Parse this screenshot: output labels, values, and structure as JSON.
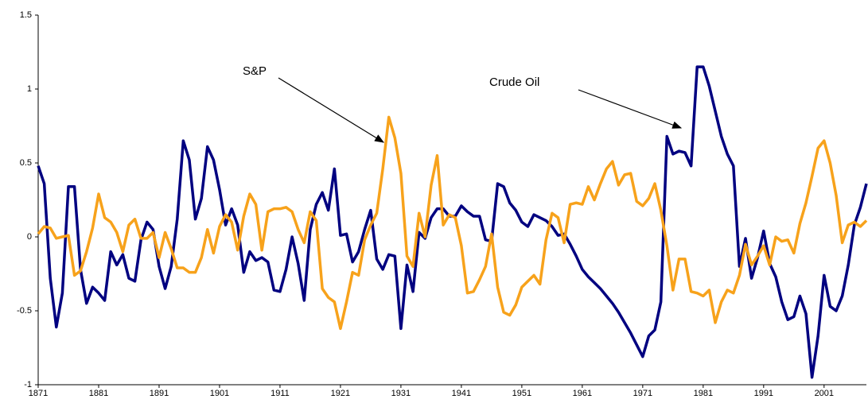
{
  "chart_data": {
    "type": "line",
    "xlim": [
      1871,
      2008
    ],
    "xticks": [
      1871,
      1881,
      1891,
      1901,
      1911,
      1921,
      1931,
      1941,
      1951,
      1961,
      1971,
      1981,
      1991,
      2001
    ],
    "ylim": [
      -1,
      1.5
    ],
    "yticks": [
      -1,
      -0.5,
      0,
      0.5,
      1,
      1.5
    ],
    "x": [
      1871,
      1872,
      1873,
      1874,
      1875,
      1876,
      1877,
      1878,
      1879,
      1880,
      1881,
      1882,
      1883,
      1884,
      1885,
      1886,
      1887,
      1888,
      1889,
      1890,
      1891,
      1892,
      1893,
      1894,
      1895,
      1896,
      1897,
      1898,
      1899,
      1900,
      1901,
      1902,
      1903,
      1904,
      1905,
      1906,
      1907,
      1908,
      1909,
      1910,
      1911,
      1912,
      1913,
      1914,
      1915,
      1916,
      1917,
      1918,
      1919,
      1920,
      1921,
      1922,
      1923,
      1924,
      1925,
      1926,
      1927,
      1928,
      1929,
      1930,
      1931,
      1932,
      1933,
      1934,
      1935,
      1936,
      1937,
      1938,
      1939,
      1940,
      1941,
      1942,
      1943,
      1944,
      1945,
      1946,
      1947,
      1948,
      1949,
      1950,
      1951,
      1952,
      1953,
      1954,
      1955,
      1956,
      1957,
      1958,
      1959,
      1960,
      1961,
      1962,
      1963,
      1964,
      1965,
      1966,
      1967,
      1968,
      1969,
      1970,
      1971,
      1972,
      1973,
      1974,
      1975,
      1976,
      1977,
      1978,
      1979,
      1980,
      1981,
      1982,
      1983,
      1984,
      1985,
      1986,
      1987,
      1988,
      1989,
      1990,
      1991,
      1992,
      1993,
      1994,
      1995,
      1996,
      1997,
      1998,
      1999,
      2000,
      2001,
      2002,
      2003,
      2004,
      2005,
      2006,
      2007,
      2008
    ],
    "series": [
      {
        "name": "Crude Oil",
        "color": "#000080",
        "values": [
          0.48,
          0.36,
          -0.28,
          -0.61,
          -0.38,
          0.34,
          0.34,
          -0.22,
          -0.45,
          -0.34,
          -0.38,
          -0.43,
          -0.1,
          -0.19,
          -0.12,
          -0.28,
          -0.3,
          -0.02,
          0.1,
          0.05,
          -0.2,
          -0.35,
          -0.2,
          0.12,
          0.65,
          0.52,
          0.12,
          0.26,
          0.61,
          0.52,
          0.32,
          0.08,
          0.19,
          0.08,
          -0.24,
          -0.1,
          -0.16,
          -0.14,
          -0.17,
          -0.36,
          -0.37,
          -0.22,
          0.0,
          -0.18,
          -0.43,
          0.05,
          0.22,
          0.3,
          0.18,
          0.46,
          0.01,
          0.02,
          -0.17,
          -0.1,
          0.05,
          0.18,
          -0.15,
          -0.22,
          -0.12,
          -0.13,
          -0.62,
          -0.19,
          -0.37,
          0.03,
          -0.01,
          0.13,
          0.19,
          0.19,
          0.14,
          0.14,
          0.21,
          0.17,
          0.14,
          0.14,
          -0.02,
          -0.03,
          0.36,
          0.34,
          0.23,
          0.18,
          0.1,
          0.07,
          0.15,
          0.13,
          0.11,
          0.07,
          0.01,
          0.02,
          -0.05,
          -0.13,
          -0.22,
          -0.27,
          -0.31,
          -0.35,
          -0.4,
          -0.45,
          -0.51,
          -0.58,
          -0.65,
          -0.73,
          -0.81,
          -0.67,
          -0.63,
          -0.44,
          0.68,
          0.56,
          0.58,
          0.57,
          0.48,
          1.15,
          1.15,
          1.02,
          0.85,
          0.68,
          0.56,
          0.48,
          -0.2,
          -0.01,
          -0.28,
          -0.14,
          0.04,
          -0.18,
          -0.27,
          -0.44,
          -0.56,
          -0.54,
          -0.4,
          -0.52,
          -0.95,
          -0.67,
          -0.26,
          -0.47,
          -0.5,
          -0.4,
          -0.19,
          0.08,
          0.2,
          0.36
        ]
      },
      {
        "name": "S&P",
        "color": "#f7a21b",
        "values": [
          0.02,
          0.07,
          0.06,
          -0.01,
          0.0,
          0.01,
          -0.26,
          -0.23,
          -0.1,
          0.06,
          0.29,
          0.13,
          0.1,
          0.03,
          -0.1,
          0.08,
          0.12,
          -0.01,
          -0.01,
          0.03,
          -0.14,
          0.03,
          -0.08,
          -0.21,
          -0.21,
          -0.24,
          -0.24,
          -0.14,
          0.05,
          -0.11,
          0.07,
          0.15,
          0.1,
          -0.09,
          0.14,
          0.29,
          0.22,
          -0.09,
          0.17,
          0.19,
          0.19,
          0.2,
          0.17,
          0.05,
          -0.04,
          0.17,
          0.11,
          -0.35,
          -0.41,
          -0.44,
          -0.62,
          -0.44,
          -0.24,
          -0.26,
          -0.02,
          0.08,
          0.16,
          0.46,
          0.81,
          0.67,
          0.43,
          -0.13,
          -0.2,
          0.16,
          0.0,
          0.35,
          0.55,
          0.08,
          0.15,
          0.13,
          -0.06,
          -0.38,
          -0.37,
          -0.29,
          -0.2,
          0.02,
          -0.34,
          -0.51,
          -0.53,
          -0.46,
          -0.34,
          -0.3,
          -0.26,
          -0.32,
          -0.02,
          0.16,
          0.13,
          -0.04,
          0.22,
          0.23,
          0.22,
          0.34,
          0.25,
          0.36,
          0.46,
          0.51,
          0.35,
          0.42,
          0.43,
          0.24,
          0.21,
          0.26,
          0.36,
          0.18,
          -0.06,
          -0.36,
          -0.15,
          -0.15,
          -0.37,
          -0.38,
          -0.4,
          -0.36,
          -0.58,
          -0.44,
          -0.36,
          -0.38,
          -0.26,
          -0.05,
          -0.19,
          -0.13,
          -0.06,
          -0.19,
          0.0,
          -0.03,
          -0.02,
          -0.11,
          0.09,
          0.23,
          0.41,
          0.6,
          0.65,
          0.5,
          0.28,
          -0.04,
          0.08,
          0.1,
          0.07,
          0.11
        ]
      }
    ]
  }
}
